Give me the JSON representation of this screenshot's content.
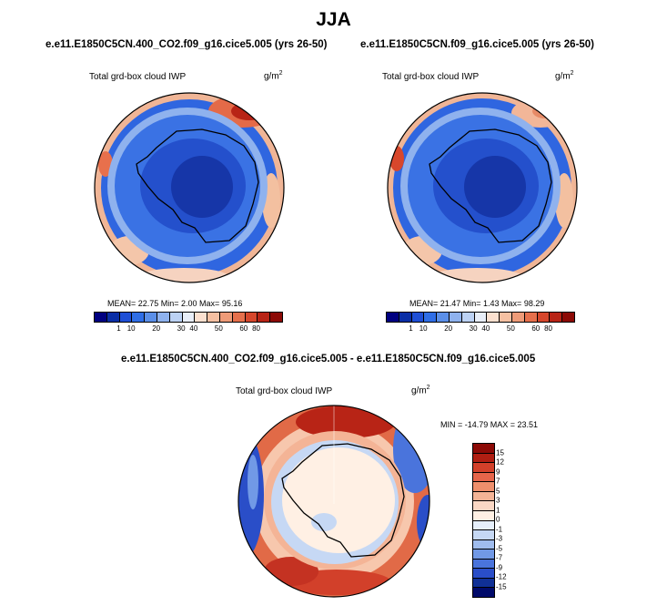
{
  "figure": {
    "season": "JJA"
  },
  "panels": [
    {
      "case": "e.e11.E1850C5CN.400_CO2.f09_g16.cice5.005 (yrs 26-50)",
      "variable": "Total grd-box cloud IWP",
      "units": "g/m",
      "units_sup": "2",
      "stats": "MEAN=  22.75  Min=   2.00  Max=  95.16"
    },
    {
      "case": "e.e11.E1850C5CN.f09_g16.cice5.005 (yrs 26-50)",
      "variable": "Total grd-box cloud IWP",
      "units": "g/m",
      "units_sup": "2",
      "stats": "MEAN=  21.47  Min=   1.43  Max=  98.29"
    },
    {
      "case": "e.e11.E1850C5CN.400_CO2.f09_g16.cice5.005 - e.e11.E1850C5CN.f09_g16.cice5.005",
      "variable": "Total grd-box cloud IWP",
      "units": "g/m",
      "units_sup": "2",
      "stats": "MIN = -14.79 MAX =  23.51"
    }
  ],
  "colorbars": {
    "abs": {
      "ticks": [
        "1",
        "10",
        "20",
        "30",
        "40",
        "50",
        "60",
        "80"
      ],
      "colors": [
        "#000080",
        "#0a2ea6",
        "#1f4fd6",
        "#2f6ee6",
        "#5b8fe8",
        "#8fb2ee",
        "#bcd2f4",
        "#e8eef8",
        "#fbe0cf",
        "#f5c0a2",
        "#ee9b78",
        "#e6704c",
        "#d6472c",
        "#b82416",
        "#8c0a06"
      ]
    },
    "diff": {
      "ticks": [
        "15",
        "12",
        "9",
        "7",
        "5",
        "3",
        "1",
        "0",
        "-1",
        "-3",
        "-5",
        "-7",
        "-9",
        "-12",
        "-15"
      ],
      "colors": [
        "#8c0a06",
        "#b01e12",
        "#d2402a",
        "#e6654a",
        "#ee8f6c",
        "#f4b496",
        "#fad7c4",
        "#fff0e4",
        "#e6effb",
        "#c6d8f4",
        "#9fbcee",
        "#7199e6",
        "#4a74dc",
        "#2a4ec8",
        "#103096",
        "#000a6a"
      ]
    }
  },
  "chart_data": [
    {
      "type": "heatmap",
      "projection": "south-polar stereographic",
      "title": "e.e11.E1850C5CN.400_CO2.f09_g16.cice5.005 (yrs 26-50)",
      "variable": "Total grd-box cloud IWP",
      "units": "g/m2",
      "mean": 22.75,
      "min": 2.0,
      "max": 95.16,
      "contour_levels": [
        1,
        10,
        20,
        30,
        40,
        50,
        60,
        80
      ]
    },
    {
      "type": "heatmap",
      "projection": "south-polar stereographic",
      "title": "e.e11.E1850C5CN.f09_g16.cice5.005 (yrs 26-50)",
      "variable": "Total grd-box cloud IWP",
      "units": "g/m2",
      "mean": 21.47,
      "min": 1.43,
      "max": 98.29,
      "contour_levels": [
        1,
        10,
        20,
        30,
        40,
        50,
        60,
        80
      ]
    },
    {
      "type": "heatmap",
      "projection": "south-polar stereographic",
      "title": "e.e11.E1850C5CN.400_CO2.f09_g16.cice5.005 - e.e11.E1850C5CN.f09_g16.cice5.005",
      "variable": "Total grd-box cloud IWP",
      "units": "g/m2",
      "min": -14.79,
      "max": 23.51,
      "contour_levels": [
        -15,
        -12,
        -9,
        -7,
        -5,
        -3,
        -1,
        0,
        1,
        3,
        5,
        7,
        9,
        12,
        15
      ]
    }
  ]
}
